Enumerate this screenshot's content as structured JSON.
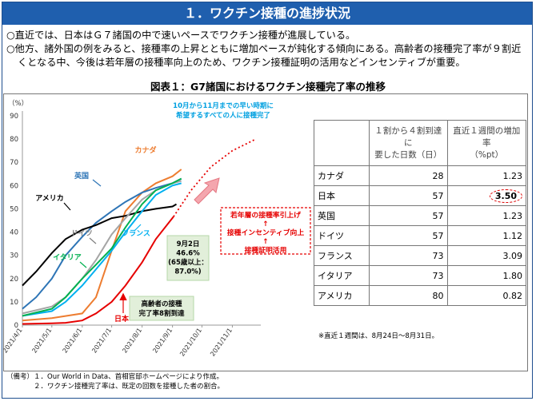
{
  "header": {
    "title": "１．ワクチン接種の進捗状況"
  },
  "bullets": [
    "○直近では、日本はＧ７諸国の中で速いペースでワクチン接種が進展している。",
    "○他方、諸外国の例をみると、接種率の上昇とともに増加ペースが鈍化する傾向にある。高齢者の接種完了率が９割近くとなる中、今後は若年層の接種率向上のため、ワクチン接種証明の活用などインセンティブが重要。"
  ],
  "chart_title": "図表１：G7諸国におけるワクチン接種完了率の推移",
  "chart_data": {
    "type": "line",
    "yunit": "（%）",
    "ylim": [
      0,
      90
    ],
    "yticks": [
      0,
      10,
      20,
      30,
      40,
      50,
      60,
      70,
      80,
      90
    ],
    "xlim": [
      "2021-04-01",
      "2021-11-30"
    ],
    "xticks": [
      "2021/4/1",
      "2021/5/1",
      "2021/6/1",
      "2021/7/1",
      "2021/8/1",
      "2021/9/1",
      "2021/10/1",
      "2021/11/1"
    ],
    "grid": false,
    "series": [
      {
        "name": "カナダ",
        "color": "#ed7d31",
        "points": [
          [
            "2021-04-01",
            2
          ],
          [
            "2021-05-01",
            3
          ],
          [
            "2021-06-01",
            5
          ],
          [
            "2021-06-15",
            12
          ],
          [
            "2021-07-01",
            32
          ],
          [
            "2021-07-15",
            49
          ],
          [
            "2021-08-01",
            57
          ],
          [
            "2021-08-15",
            61
          ],
          [
            "2021-09-01",
            64
          ],
          [
            "2021-09-10",
            67
          ]
        ]
      },
      {
        "name": "英国",
        "color": "#2e75b6",
        "points": [
          [
            "2021-04-01",
            7
          ],
          [
            "2021-04-15",
            12
          ],
          [
            "2021-05-01",
            20
          ],
          [
            "2021-05-15",
            30
          ],
          [
            "2021-06-01",
            38
          ],
          [
            "2021-06-15",
            44
          ],
          [
            "2021-07-01",
            49
          ],
          [
            "2021-07-15",
            53
          ],
          [
            "2021-08-01",
            57
          ],
          [
            "2021-08-15",
            59
          ],
          [
            "2021-09-01",
            61
          ],
          [
            "2021-09-10",
            63
          ]
        ]
      },
      {
        "name": "アメリカ",
        "color": "#000000",
        "points": [
          [
            "2021-04-01",
            17
          ],
          [
            "2021-04-15",
            23
          ],
          [
            "2021-05-01",
            31
          ],
          [
            "2021-05-15",
            37
          ],
          [
            "2021-06-01",
            41
          ],
          [
            "2021-06-15",
            43
          ],
          [
            "2021-07-01",
            46
          ],
          [
            "2021-07-15",
            47
          ],
          [
            "2021-08-01",
            49
          ],
          [
            "2021-08-15",
            50
          ],
          [
            "2021-09-01",
            51
          ],
          [
            "2021-09-05",
            52
          ]
        ]
      },
      {
        "name": "ドイツ",
        "color": "#a5a5a5",
        "points": [
          [
            "2021-04-01",
            5
          ],
          [
            "2021-05-01",
            8
          ],
          [
            "2021-05-15",
            12
          ],
          [
            "2021-06-01",
            20
          ],
          [
            "2021-06-15",
            28
          ],
          [
            "2021-07-01",
            39
          ],
          [
            "2021-07-15",
            46
          ],
          [
            "2021-08-01",
            54
          ],
          [
            "2021-08-15",
            58
          ],
          [
            "2021-09-01",
            61
          ],
          [
            "2021-09-10",
            62
          ]
        ]
      },
      {
        "name": "フランス",
        "color": "#00b0f0",
        "points": [
          [
            "2021-04-01",
            4
          ],
          [
            "2021-05-01",
            6
          ],
          [
            "2021-05-15",
            10
          ],
          [
            "2021-06-01",
            17
          ],
          [
            "2021-06-15",
            24
          ],
          [
            "2021-07-01",
            32
          ],
          [
            "2021-07-15",
            40
          ],
          [
            "2021-08-01",
            49
          ],
          [
            "2021-08-15",
            56
          ],
          [
            "2021-09-01",
            60
          ],
          [
            "2021-09-10",
            61
          ]
        ]
      },
      {
        "name": "イタリア",
        "color": "#00b050",
        "points": [
          [
            "2021-04-01",
            4
          ],
          [
            "2021-05-01",
            7
          ],
          [
            "2021-05-15",
            12
          ],
          [
            "2021-06-01",
            20
          ],
          [
            "2021-06-15",
            26
          ],
          [
            "2021-07-01",
            33
          ],
          [
            "2021-07-15",
            42
          ],
          [
            "2021-08-01",
            52
          ],
          [
            "2021-08-15",
            58
          ],
          [
            "2021-09-01",
            61
          ],
          [
            "2021-09-10",
            63
          ]
        ]
      },
      {
        "name": "日本",
        "color": "#e60000",
        "points": [
          [
            "2021-04-01",
            0.5
          ],
          [
            "2021-05-01",
            0.8
          ],
          [
            "2021-05-15",
            1
          ],
          [
            "2021-06-01",
            2
          ],
          [
            "2021-06-15",
            5
          ],
          [
            "2021-07-01",
            10
          ],
          [
            "2021-07-15",
            17
          ],
          [
            "2021-08-01",
            27
          ],
          [
            "2021-08-15",
            37
          ],
          [
            "2021-09-02",
            46.6
          ]
        ]
      },
      {
        "name": "",
        "color": "#e60000",
        "dashed": true,
        "points": [
          [
            "2021-09-02",
            46.6
          ],
          [
            "2021-09-20",
            58
          ],
          [
            "2021-10-10",
            68
          ],
          [
            "2021-11-01",
            75
          ],
          [
            "2021-11-25",
            80
          ]
        ]
      }
    ],
    "annotations": {
      "early_hope": "10月から11月までの早い時期に\n希望するすべての人に接種完了",
      "sept2": "9月2日\n46.6%\n(65歳以上：\n87.0%)",
      "elderly": "高齢者の接種\n完了率8割到達",
      "measures": [
        "若年層の接種率引上げ",
        "↑",
        "接種インセンティブ向上",
        "↑",
        "接種証明活用"
      ]
    }
  },
  "table": {
    "headers": [
      "",
      "１割から４割到達に\n要した日数（日）",
      "直近１週間の増加率\n（%pt）"
    ],
    "rows": [
      [
        "カナダ",
        "28",
        "1.23"
      ],
      [
        "日本",
        "57",
        "3.50"
      ],
      [
        "英国",
        "57",
        "1.23"
      ],
      [
        "ドイツ",
        "57",
        "1.12"
      ],
      [
        "フランス",
        "73",
        "3.09"
      ],
      [
        "イタリア",
        "73",
        "1.80"
      ],
      [
        "アメリカ",
        "80",
        "0.82"
      ]
    ],
    "note": "※直近１週間は、8月24日～8月31日。"
  },
  "footer": [
    "（備考）１．Our World in Data、首相官邸ホームページにより作成。",
    "　　　　２．ワクチン接種完了率は、既定の回数を接種した者の割合。"
  ]
}
